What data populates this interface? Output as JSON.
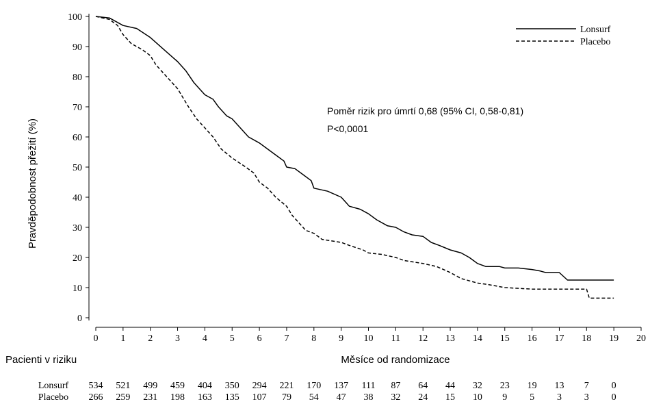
{
  "chart_data": {
    "type": "line",
    "ylabel": "Pravděpodobnost přežití (%)",
    "xlabel": "Měsíce od randomizace",
    "xlim": [
      0,
      20
    ],
    "ylim": [
      0,
      100
    ],
    "x_ticks": [
      0,
      1,
      2,
      3,
      4,
      5,
      6,
      7,
      8,
      9,
      10,
      11,
      12,
      13,
      14,
      15,
      16,
      17,
      18,
      19,
      20
    ],
    "y_ticks": [
      0,
      10,
      20,
      30,
      40,
      50,
      60,
      70,
      80,
      90,
      100
    ],
    "grid": false,
    "legend_position": "top-right",
    "annotation": {
      "line1": "Poměr rizik pro úmrtí 0,68 (95% CI, 0,58-0,81)",
      "line2": "P<0,0001"
    },
    "series": [
      {
        "name": "Lonsurf",
        "style": "solid",
        "color": "#000000",
        "points": [
          [
            0,
            100
          ],
          [
            0.5,
            99.5
          ],
          [
            0.8,
            98
          ],
          [
            1,
            97
          ],
          [
            1.5,
            96
          ],
          [
            2,
            93
          ],
          [
            2.5,
            89
          ],
          [
            3,
            85
          ],
          [
            3.3,
            82
          ],
          [
            3.6,
            78
          ],
          [
            4,
            74
          ],
          [
            4.3,
            72.5
          ],
          [
            4.5,
            70
          ],
          [
            4.8,
            67
          ],
          [
            5,
            66
          ],
          [
            5.3,
            63
          ],
          [
            5.6,
            60
          ],
          [
            6,
            58
          ],
          [
            6.3,
            56
          ],
          [
            6.6,
            54
          ],
          [
            6.9,
            52
          ],
          [
            7,
            50
          ],
          [
            7.3,
            49.5
          ],
          [
            7.6,
            47.5
          ],
          [
            7.9,
            45.5
          ],
          [
            8,
            43
          ],
          [
            8.5,
            42
          ],
          [
            9,
            40
          ],
          [
            9.3,
            37
          ],
          [
            9.7,
            36
          ],
          [
            10,
            34.5
          ],
          [
            10.3,
            32.5
          ],
          [
            10.7,
            30.5
          ],
          [
            11,
            30
          ],
          [
            11.3,
            28.5
          ],
          [
            11.6,
            27.5
          ],
          [
            12,
            27
          ],
          [
            12.3,
            25
          ],
          [
            12.6,
            24
          ],
          [
            13,
            22.5
          ],
          [
            13.4,
            21.5
          ],
          [
            13.7,
            20
          ],
          [
            14,
            18
          ],
          [
            14.3,
            17
          ],
          [
            14.8,
            17
          ],
          [
            15,
            16.5
          ],
          [
            15.5,
            16.5
          ],
          [
            16,
            16
          ],
          [
            16.3,
            15.5
          ],
          [
            16.5,
            15
          ],
          [
            17,
            15
          ],
          [
            17.3,
            12.5
          ],
          [
            19,
            12.5
          ]
        ]
      },
      {
        "name": "Placebo",
        "style": "dashed",
        "color": "#000000",
        "points": [
          [
            0,
            100
          ],
          [
            0.5,
            99
          ],
          [
            0.8,
            97
          ],
          [
            1,
            94
          ],
          [
            1.3,
            91
          ],
          [
            1.7,
            89
          ],
          [
            2,
            87
          ],
          [
            2.2,
            84
          ],
          [
            2.4,
            82
          ],
          [
            2.7,
            79
          ],
          [
            3,
            76
          ],
          [
            3.2,
            73
          ],
          [
            3.4,
            70
          ],
          [
            3.7,
            66
          ],
          [
            4,
            63
          ],
          [
            4.3,
            60
          ],
          [
            4.6,
            56
          ],
          [
            5,
            53
          ],
          [
            5.5,
            50
          ],
          [
            5.8,
            48
          ],
          [
            6,
            45
          ],
          [
            6.3,
            43
          ],
          [
            6.6,
            40
          ],
          [
            7,
            37
          ],
          [
            7.2,
            34
          ],
          [
            7.5,
            31
          ],
          [
            7.7,
            29
          ],
          [
            8,
            28
          ],
          [
            8.3,
            26
          ],
          [
            9,
            25
          ],
          [
            9.3,
            24
          ],
          [
            9.8,
            22.5
          ],
          [
            10,
            21.5
          ],
          [
            10.5,
            21
          ],
          [
            11,
            20
          ],
          [
            11.3,
            19
          ],
          [
            12,
            18
          ],
          [
            12.5,
            17
          ],
          [
            13,
            15
          ],
          [
            13.4,
            13
          ],
          [
            13.8,
            12
          ],
          [
            14,
            11.5
          ],
          [
            14.4,
            11
          ],
          [
            15,
            10
          ],
          [
            16,
            9.5
          ],
          [
            17,
            9.5
          ],
          [
            18,
            9.5
          ],
          [
            18.1,
            6.5
          ],
          [
            19,
            6.5
          ]
        ]
      }
    ]
  },
  "risk_table": {
    "title": "Pacienti v riziku",
    "rows": [
      {
        "label": "Lonsurf",
        "values": [
          "534",
          "521",
          "499",
          "459",
          "404",
          "350",
          "294",
          "221",
          "170",
          "137",
          "111",
          "87",
          "64",
          "44",
          "32",
          "23",
          "19",
          "13",
          "7",
          "0"
        ]
      },
      {
        "label": "Placebo",
        "values": [
          "266",
          "259",
          "231",
          "198",
          "163",
          "135",
          "107",
          "79",
          "54",
          "47",
          "38",
          "32",
          "24",
          "15",
          "10",
          "9",
          "5",
          "3",
          "3",
          "0"
        ]
      }
    ]
  }
}
